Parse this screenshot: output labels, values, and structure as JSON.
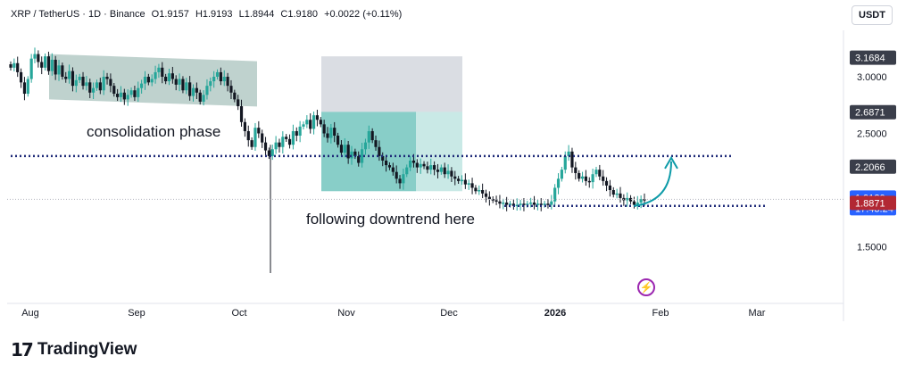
{
  "header": {
    "symbol": "XRP / TetherUS · 1D · Binance",
    "open": "O1.9157",
    "high": "H1.9193",
    "low": "L1.8944",
    "close": "C1.9180",
    "change": "+0.0022 (+0.11%)"
  },
  "currency_button": "USDT",
  "brand": {
    "mark": "17",
    "word": "TradingView"
  },
  "icons": {
    "logo": "tradingview-logo-icon",
    "bolt": "lightning-bolt-icon"
  },
  "colors": {
    "up": "#26a69a",
    "down": "#131722",
    "consolidation_box": "#a9c3bd",
    "position_gray": "#d1d4dc",
    "position_green": "#26a69a",
    "arrow": "#0e9ba8",
    "bid": "#089981",
    "ask": "#b22833",
    "last": "#2962ff"
  },
  "chart_data": {
    "type": "candlestick",
    "x_ticks": [
      "Aug",
      "Sep",
      "Oct",
      "Nov",
      "Dec",
      "2026",
      "Feb",
      "Mar"
    ],
    "y_ticks": [
      "3.0000",
      "2.5000",
      "1.5000"
    ],
    "y_tick_values": [
      3.0,
      2.5,
      1.5
    ],
    "ylim": [
      1.5,
      3.16
    ],
    "price_labels": [
      {
        "value": 3.1684,
        "text": "3.1684",
        "style": "gray"
      },
      {
        "value": 2.6871,
        "text": "2.6871",
        "style": "gray"
      },
      {
        "value": 2.2066,
        "text": "2.2066",
        "style": "gray"
      },
      {
        "value": 1.9292,
        "text": "1.9292",
        "style": "green"
      },
      {
        "value": 1.918,
        "text": "1.9180",
        "sub": "17:43:24",
        "style": "blue"
      },
      {
        "value": 1.8871,
        "text": "1.8871",
        "style": "red"
      }
    ],
    "closes": [
      3.08,
      3.12,
      3.04,
      2.95,
      2.85,
      2.98,
      3.16,
      3.2,
      3.13,
      3.08,
      3.18,
      3.05,
      3.15,
      3.02,
      3.1,
      3.0,
      2.98,
      3.05,
      2.92,
      2.97,
      3.0,
      2.92,
      2.95,
      2.86,
      2.9,
      2.95,
      2.88,
      3.0,
      2.98,
      2.92,
      2.85,
      2.82,
      2.86,
      2.8,
      2.84,
      2.88,
      2.82,
      2.9,
      2.94,
      3.0,
      2.95,
      2.98,
      3.04,
      3.08,
      3.0,
      2.96,
      3.03,
      2.98,
      2.93,
      2.98,
      2.88,
      2.95,
      2.83,
      2.9,
      2.86,
      2.78,
      2.84,
      2.92,
      2.96,
      3.0,
      3.04,
      2.96,
      3.0,
      2.92,
      2.86,
      2.8,
      2.74,
      2.6,
      2.52,
      2.44,
      2.38,
      2.55,
      2.5,
      2.42,
      2.35,
      2.3,
      2.36,
      2.42,
      2.38,
      2.47,
      2.45,
      2.4,
      2.52,
      2.48,
      2.56,
      2.58,
      2.62,
      2.54,
      2.66,
      2.62,
      2.58,
      2.5,
      2.46,
      2.55,
      2.48,
      2.4,
      2.33,
      2.4,
      2.28,
      2.34,
      2.3,
      2.24,
      2.36,
      2.42,
      2.52,
      2.44,
      2.38,
      2.3,
      2.26,
      2.22,
      2.2,
      2.16,
      2.1,
      2.06,
      2.14,
      2.2,
      2.26,
      2.24,
      2.2,
      2.23,
      2.21,
      2.18,
      2.22,
      2.18,
      2.16,
      2.2,
      2.14,
      2.17,
      2.12,
      2.1,
      2.08,
      2.09,
      2.05,
      2.06,
      2.02,
      1.99,
      2.0,
      1.97,
      1.94,
      1.92,
      1.91,
      1.9,
      1.88,
      1.89,
      1.87,
      1.88,
      1.86,
      1.87,
      1.88,
      1.87,
      1.88,
      1.89,
      1.87,
      1.88,
      1.87,
      1.88,
      1.87,
      1.9,
      2.02,
      2.1,
      2.18,
      2.3,
      2.34,
      2.2,
      2.15,
      2.1,
      2.12,
      2.08,
      2.07,
      2.14,
      2.18,
      2.12,
      2.08,
      2.04,
      2.0,
      1.96,
      1.97,
      1.93,
      1.91,
      1.93,
      1.9,
      1.87,
      1.89,
      1.92,
      1.918
    ],
    "annotations": [
      {
        "text": "consolidation phase"
      },
      {
        "text": "following downtrend here"
      }
    ],
    "resistance_level": 2.3,
    "support_level": 1.86,
    "consolidation_range": [
      2.8,
      3.2
    ],
    "position_box": {
      "top": 3.18,
      "entry": 2.69,
      "bottom": 1.99
    }
  }
}
